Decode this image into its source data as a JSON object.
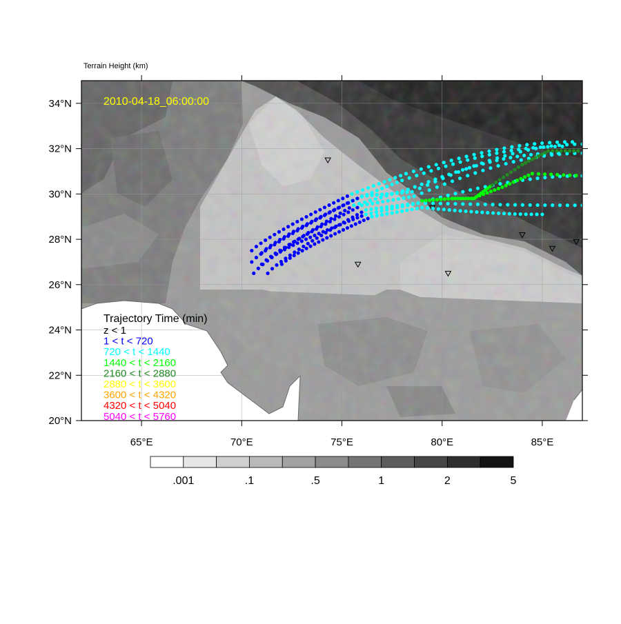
{
  "chart_data": {
    "type": "scatter",
    "title": "Terrain Height   (km)",
    "timestamp": "2010-04-18_06:00:00",
    "xlim": [
      62,
      87
    ],
    "ylim": [
      20,
      35
    ],
    "x_ticks": [
      {
        "value": 65,
        "label": "65°E"
      },
      {
        "value": 70,
        "label": "70°E"
      },
      {
        "value": 75,
        "label": "75°E"
      },
      {
        "value": 80,
        "label": "80°E"
      },
      {
        "value": 85,
        "label": "85°E"
      }
    ],
    "y_ticks": [
      {
        "value": 20,
        "label": "20°N"
      },
      {
        "value": 22,
        "label": "22°N"
      },
      {
        "value": 24,
        "label": "24°N"
      },
      {
        "value": 26,
        "label": "26°N"
      },
      {
        "value": 28,
        "label": "28°N"
      },
      {
        "value": 30,
        "label": "30°N"
      },
      {
        "value": 32,
        "label": "32°N"
      },
      {
        "value": 34,
        "label": "34°N"
      }
    ],
    "grid": true,
    "legend": {
      "placement": "bottom-left",
      "title": "Trajectory Time (min)",
      "entries": [
        {
          "label": "z < 1",
          "color": "#000000"
        },
        {
          "label": "1 < t < 720",
          "color": "#0000ff"
        },
        {
          "label": "720 < t < 1440",
          "color": "#00ffff"
        },
        {
          "label": "1440 < t < 2160",
          "color": "#00ff00"
        },
        {
          "label": "2160 < t < 2880",
          "color": "#228b22"
        },
        {
          "label": "2880 < t < 3600",
          "color": "#ffff00"
        },
        {
          "label": "3600 < t < 4320",
          "color": "#ffa500"
        },
        {
          "label": "4320 < t < 5040",
          "color": "#ff0000"
        },
        {
          "label": "5040 < t < 5760",
          "color": "#ff00ff"
        }
      ]
    },
    "colorbar": {
      "colors": [
        "#ffffff",
        "#e6e6e6",
        "#cfcfcf",
        "#b9b9b9",
        "#a2a2a2",
        "#8b8b8b",
        "#747474",
        "#5d5d5d",
        "#464646",
        "#2f2f2f",
        "#141414"
      ],
      "labels": [
        ".001",
        ".1",
        ".5",
        "1",
        "2",
        "5"
      ]
    },
    "stations": [
      {
        "lon": 74.3,
        "lat": 31.5
      },
      {
        "lon": 79.5,
        "lat": 29.4
      },
      {
        "lon": 75.8,
        "lat": 26.9
      },
      {
        "lon": 80.3,
        "lat": 26.5
      },
      {
        "lon": 84.0,
        "lat": 28.2
      },
      {
        "lon": 85.5,
        "lat": 27.6
      },
      {
        "lon": 86.7,
        "lat": 27.9
      }
    ],
    "trajectories": [
      {
        "start": [
          70.5,
          27.5
        ],
        "bend": [
          75.5,
          30.0
        ],
        "mid": [
          78.2,
          30.9
        ],
        "end": [
          86.5,
          32.3
        ]
      },
      {
        "start": [
          70.5,
          27.0
        ],
        "bend": [
          75.5,
          29.7
        ],
        "mid": [
          78.0,
          30.6
        ],
        "end": [
          86.0,
          32.1
        ]
      },
      {
        "start": [
          70.6,
          26.5
        ],
        "bend": [
          75.6,
          29.5
        ],
        "mid": [
          78.3,
          30.2
        ],
        "end": [
          85.8,
          31.8
        ]
      },
      {
        "start": [
          71.0,
          27.4
        ],
        "bend": [
          76.0,
          29.9
        ],
        "mid": [
          78.5,
          30.1
        ],
        "end": [
          87.0,
          32.2
        ]
      },
      {
        "start": [
          71.0,
          26.9
        ],
        "bend": [
          76.0,
          29.5
        ],
        "mid": [
          78.6,
          29.9
        ],
        "end": [
          87.0,
          31.8
        ]
      },
      {
        "start": [
          71.3,
          26.5
        ],
        "bend": [
          76.2,
          29.3
        ],
        "mid": [
          78.8,
          29.6
        ],
        "end": [
          87.0,
          30.8
        ]
      },
      {
        "start": [
          71.5,
          27.2
        ],
        "bend": [
          76.2,
          29.1
        ],
        "mid": [
          78.8,
          29.6
        ],
        "end": [
          87.0,
          29.5
        ]
      },
      {
        "start": [
          72.0,
          26.9
        ],
        "bend": [
          76.5,
          29.0
        ],
        "mid": [
          79.0,
          29.4
        ],
        "end": [
          85.0,
          29.1
        ]
      }
    ],
    "green_trail": [
      [
        79.0,
        29.7
      ],
      [
        80.5,
        29.8
      ],
      [
        81.6,
        29.8
      ],
      [
        82.5,
        30.4
      ],
      [
        84.0,
        31.3
      ],
      [
        85.3,
        31.9
      ],
      [
        87.0,
        31.9
      ]
    ]
  }
}
